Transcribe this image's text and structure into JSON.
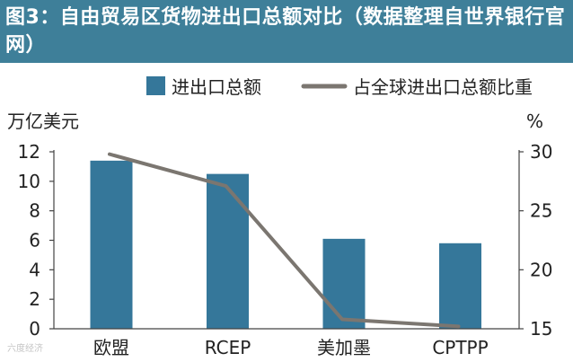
{
  "title": "图3：自由贸易区货物进出口总额对比（数据整理自世界银行官网）",
  "watermark": "六度经济",
  "colors": {
    "title_band": "#3e7f99",
    "bar": "#35779a",
    "line": "#7b7670",
    "axis": "#444444"
  },
  "chart_data": {
    "type": "bar",
    "categories": [
      "欧盟",
      "RCEP",
      "美加墨",
      "CPTPP"
    ],
    "series": [
      {
        "name": "进出口总额",
        "type": "bar",
        "axis": "left",
        "values": [
          11.4,
          10.5,
          6.1,
          5.8
        ]
      },
      {
        "name": "占全球进出口总额比重",
        "type": "line",
        "axis": "right",
        "values": [
          29.8,
          27.1,
          15.8,
          15.2
        ]
      }
    ],
    "y_left": {
      "label": "万亿美元",
      "ylim": [
        0,
        12
      ],
      "ticks": [
        "0",
        "2",
        "4",
        "6",
        "8",
        "10",
        "12"
      ]
    },
    "y_right": {
      "label": "%",
      "ylim": [
        15,
        30
      ],
      "ticks": [
        "15",
        "20",
        "25",
        "30"
      ]
    },
    "grid": false,
    "legend_position": "top"
  }
}
